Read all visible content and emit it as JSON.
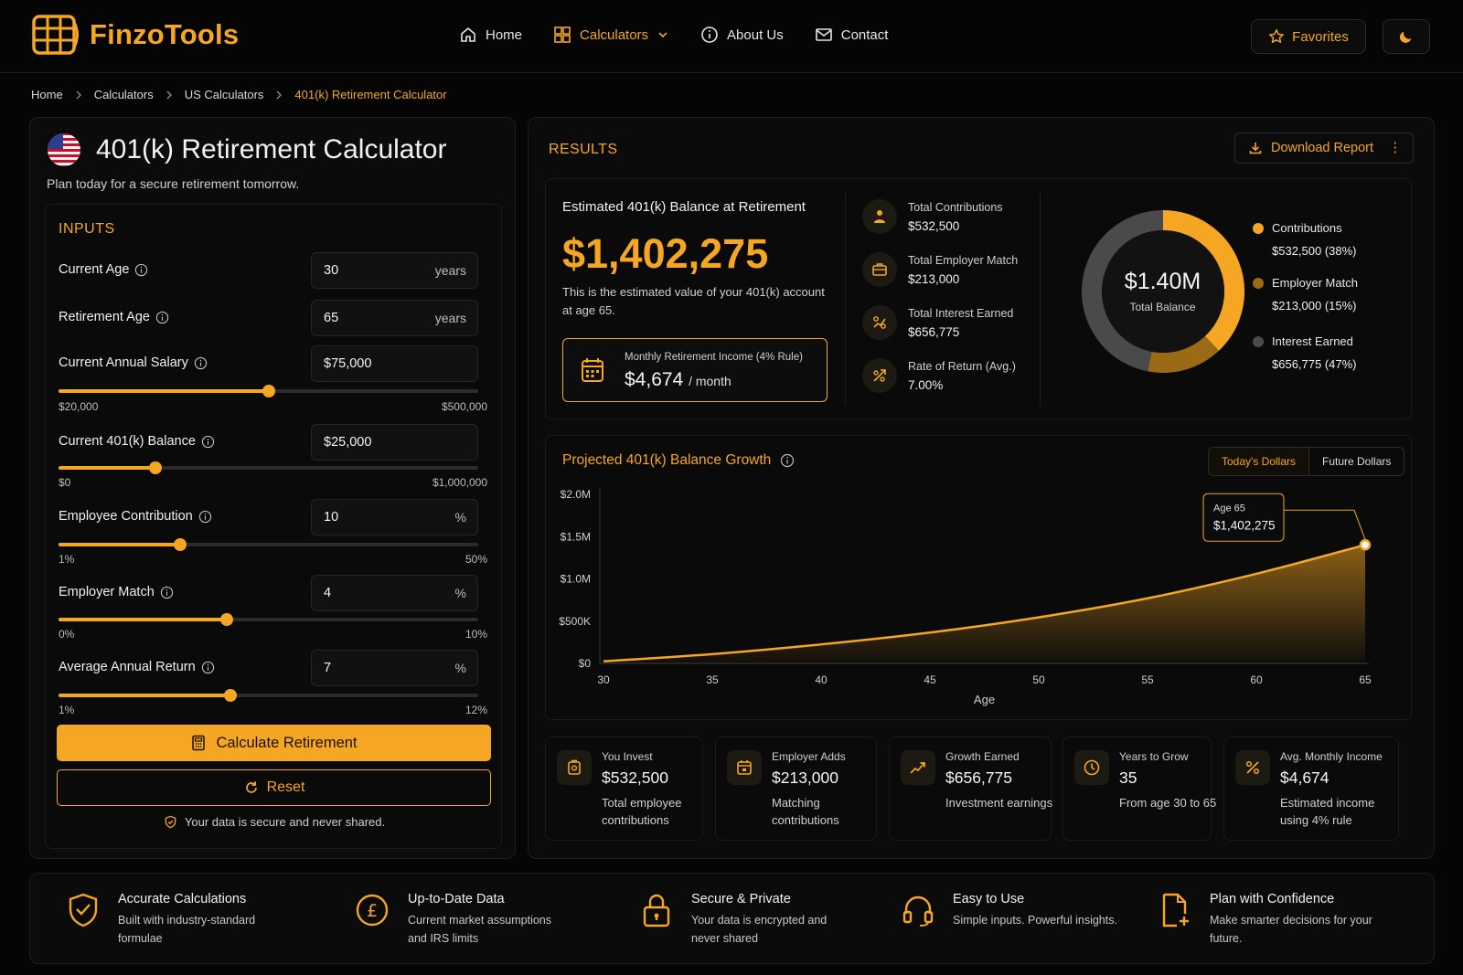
{
  "brand": {
    "name": "FinzoTools",
    "accent": "#f5a623"
  },
  "nav": {
    "home": "Home",
    "calculators": "Calculators",
    "about": "About Us",
    "contact": "Contact",
    "favorites": "Favorites"
  },
  "breadcrumb": [
    "Home",
    "Calculators",
    "US Calculators",
    "401(k) Retirement Calculator"
  ],
  "calculator": {
    "title": "401(k) Retirement Calculator",
    "subtitle": "Plan today for a secure retirement tomorrow.",
    "inputs_title": "INPUTS",
    "fields": [
      {
        "label": "Current Age",
        "value": "30",
        "unit": "years"
      },
      {
        "label": "Retirement Age",
        "value": "65",
        "unit": "years"
      },
      {
        "label": "Current Annual Salary",
        "value": "$75,000",
        "unit": "",
        "min": "$20,000",
        "max": "$500,000",
        "level": 0.5
      },
      {
        "label": "Current 401(k) Balance",
        "value": "$25,000",
        "unit": "",
        "min": "$0",
        "max": "$1,000,000",
        "level": 0.23
      },
      {
        "label": "Employee Contribution",
        "value": "10",
        "unit": "%",
        "min": "1%",
        "max": "50%",
        "level": 0.29
      },
      {
        "label": "Employer Match",
        "value": "4",
        "unit": "%",
        "min": "0%",
        "max": "10%",
        "level": 0.4
      },
      {
        "label": "Average Annual Return",
        "value": "7",
        "unit": "%",
        "min": "1%",
        "max": "12%",
        "level": 0.41
      }
    ],
    "calculate_label": "Calculate Retirement",
    "reset_label": "Reset",
    "secure_note": "Your data is secure and never shared."
  },
  "results": {
    "title": "RESULTS",
    "download_label": "Download Report",
    "estimate_label": "Estimated 401(k) Balance at Retirement",
    "estimate_value": "$1,402,275",
    "estimate_desc": "This is the estimated value of your 401(k) account at age 65.",
    "monthly_label": "Monthly Retirement Income (4% Rule)",
    "monthly_value": "$4,674",
    "monthly_unit": "/ month",
    "stats": [
      {
        "label": "Total Contributions",
        "value": "$532,500",
        "icon": "person-icon"
      },
      {
        "label": "Total Employer Match",
        "value": "$213,000",
        "icon": "briefcase-icon"
      },
      {
        "label": "Total Interest Earned",
        "value": "$656,775",
        "icon": "growth-icon"
      },
      {
        "label": "Rate of Return (Avg.)",
        "value": "7.00%",
        "icon": "rate-icon"
      }
    ],
    "donut_value": "$1.40M",
    "donut_label": "Total Balance",
    "legend": [
      {
        "label": "Contributions",
        "value": "$532,500 (38%)",
        "color": "#f5a623"
      },
      {
        "label": "Employer Match",
        "value": "$213,000 (15%)",
        "color": "#9a6a14"
      },
      {
        "label": "Interest Earned",
        "value": "$656,775 (47%)",
        "color": "#4a4a4a"
      }
    ]
  },
  "chart": {
    "title": "Projected 401(k) Balance Growth",
    "toggle_on": "Today's Dollars",
    "toggle_off": "Future Dollars",
    "tooltip_label": "Age 65",
    "tooltip_value": "$1,402,275"
  },
  "chart_data": {
    "type": "area",
    "title": "Projected 401(k) Balance Growth",
    "xlabel": "Age",
    "ylabel": "",
    "x": [
      30,
      35,
      40,
      45,
      50,
      55,
      60,
      65
    ],
    "y": [
      25000,
      110000,
      225000,
      365000,
      545000,
      770000,
      1060000,
      1402275
    ],
    "xlim": [
      30,
      65
    ],
    "ylim": [
      0,
      2000000
    ],
    "ytick_labels": [
      "$0",
      "$500K",
      "$1.0M",
      "$1.5M",
      "$2.0M"
    ],
    "ytick_values": [
      0,
      500000,
      1000000,
      1500000,
      2000000
    ],
    "xtick_labels": [
      "30",
      "35",
      "40",
      "45",
      "50",
      "55",
      "60",
      "65"
    ],
    "grid": false,
    "color": "#f5a623"
  },
  "features": [
    {
      "label": "You Invest",
      "value": "$532,500",
      "desc": "Total employee contributions",
      "icon": "wallet-icon"
    },
    {
      "label": "Employer Adds",
      "value": "$213,000",
      "desc": "Matching contributions",
      "icon": "calendar-icon"
    },
    {
      "label": "Growth Earned",
      "value": "$656,775",
      "desc": "Investment earnings",
      "icon": "trend-up-icon"
    },
    {
      "label": "Years to Grow",
      "value": "35",
      "desc": "From age 30 to 65",
      "icon": "clock-icon"
    },
    {
      "label": "Avg. Monthly Income",
      "value": "$4,674",
      "desc": "Estimated income using 4% rule",
      "icon": "percent-icon"
    }
  ],
  "benefits": [
    {
      "title": "Accurate Calculations",
      "desc": "Built with industry-standard formulae",
      "icon": "shield-check-icon"
    },
    {
      "title": "Up-to-Date Data",
      "desc": "Current market assumptions and IRS limits",
      "icon": "pound-coin-icon"
    },
    {
      "title": "Secure & Private",
      "desc": "Your data is encrypted and never shared",
      "icon": "lock-icon"
    },
    {
      "title": "Easy to Use",
      "desc": "Simple inputs. Powerful insights.",
      "icon": "headset-icon"
    },
    {
      "title": "Plan with Confidence",
      "desc": "Make smarter decisions for your future.",
      "icon": "document-plus-icon"
    }
  ]
}
